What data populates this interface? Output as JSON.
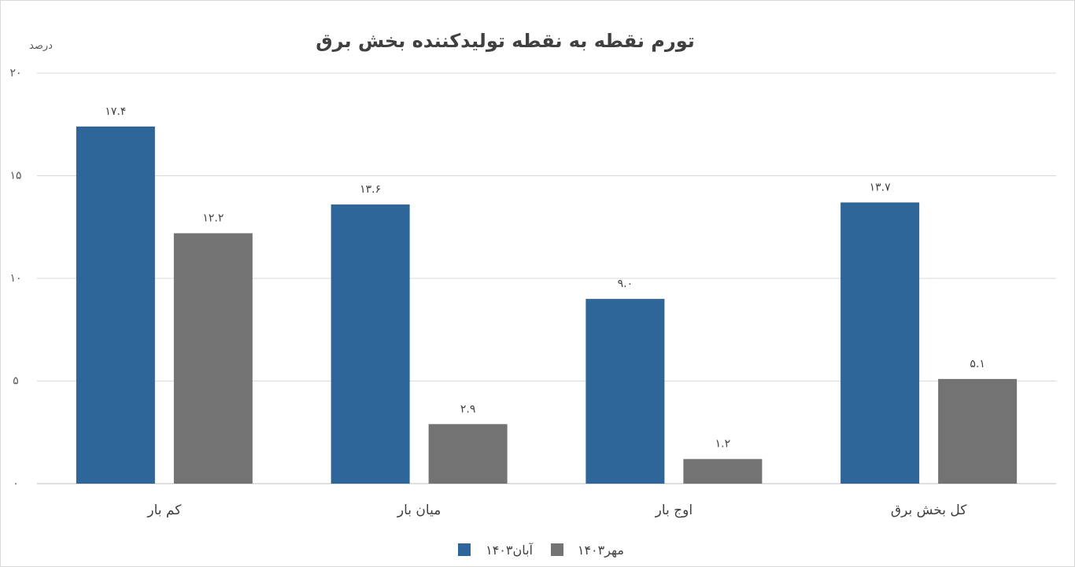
{
  "chart_data": {
    "type": "bar",
    "title": "تورم نقطه به نقطه تولیدکننده بخش برق",
    "ylabel": "درصد",
    "xlabel": "",
    "ylim": [
      0,
      20
    ],
    "yticks": [
      0,
      5,
      10,
      15,
      20
    ],
    "ytick_labels": [
      "۰",
      "۵",
      "۱۰",
      "۱۵",
      "۲۰"
    ],
    "grid": true,
    "legend_position": "bottom",
    "categories": [
      "کل بخش برق",
      "اوج بار",
      "میان بار",
      "کم بار"
    ],
    "series": [
      {
        "name": "آبان۱۴۰۳",
        "color": "#2e6699",
        "values": [
          13.7,
          9.0,
          13.6,
          17.4
        ],
        "labels": [
          "۱۳.۷",
          "۹.۰",
          "۱۳.۶",
          "۱۷.۴"
        ]
      },
      {
        "name": "مهر۱۴۰۳",
        "color": "#737373",
        "values": [
          5.1,
          1.2,
          2.9,
          12.2
        ],
        "labels": [
          "۵.۱",
          "۱.۲",
          "۲.۹",
          "۱۲.۲"
        ]
      }
    ]
  }
}
